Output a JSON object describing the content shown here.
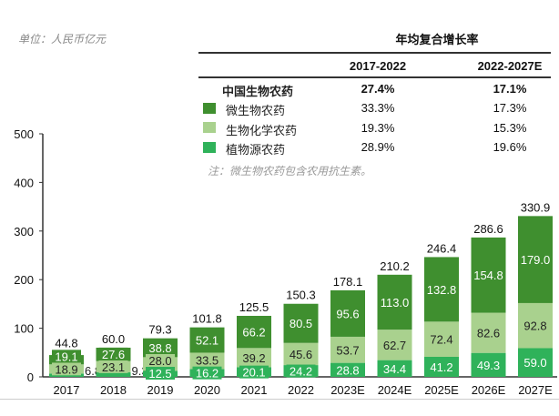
{
  "unit_label": "单位：人民币亿元",
  "cagr_table": {
    "title": "年均复合增长率",
    "columns": [
      "2017-2022",
      "2022-2027E"
    ],
    "rows": [
      {
        "label": "中国生物农药",
        "values": [
          "27.4%",
          "17.1%"
        ],
        "bold": true
      },
      {
        "label": "微生物农药",
        "values": [
          "33.3%",
          "17.3%"
        ],
        "color": "#3f8f2f"
      },
      {
        "label": "生物化学农药",
        "values": [
          "19.3%",
          "15.3%"
        ],
        "color": "#a9d18e"
      },
      {
        "label": "植物源农药",
        "values": [
          "28.9%",
          "19.6%"
        ],
        "color": "#2fb25a"
      }
    ],
    "note": "注：微生物农药包含农用抗生素。"
  },
  "chart_data": {
    "type": "bar",
    "stacked": true,
    "categories": [
      "2017",
      "2018",
      "2019",
      "2020",
      "2021",
      "2022",
      "2023E",
      "2024E",
      "2025E",
      "2026E",
      "2027E"
    ],
    "series": [
      {
        "name": "植物源农药",
        "color": "#2fb25a",
        "values": [
          6.8,
          9.3,
          12.5,
          16.2,
          20.1,
          24.2,
          28.8,
          34.4,
          41.2,
          49.3,
          59.0
        ]
      },
      {
        "name": "生物化学农药",
        "color": "#a9d18e",
        "values": [
          18.9,
          23.1,
          28.0,
          33.5,
          39.2,
          45.6,
          53.7,
          62.7,
          72.4,
          82.6,
          92.8
        ]
      },
      {
        "name": "微生物农药",
        "color": "#3f8f2f",
        "values": [
          19.1,
          27.6,
          38.8,
          52.1,
          66.2,
          80.5,
          95.6,
          113.0,
          132.8,
          154.8,
          179.0
        ]
      }
    ],
    "totals": [
      44.8,
      60.0,
      79.3,
      101.8,
      125.5,
      150.3,
      178.1,
      210.2,
      246.4,
      286.6,
      330.9
    ],
    "ylim": [
      0,
      500
    ],
    "yticks": [
      0,
      100,
      200,
      300,
      400,
      500
    ],
    "grid": false,
    "legend": "top-right table"
  }
}
